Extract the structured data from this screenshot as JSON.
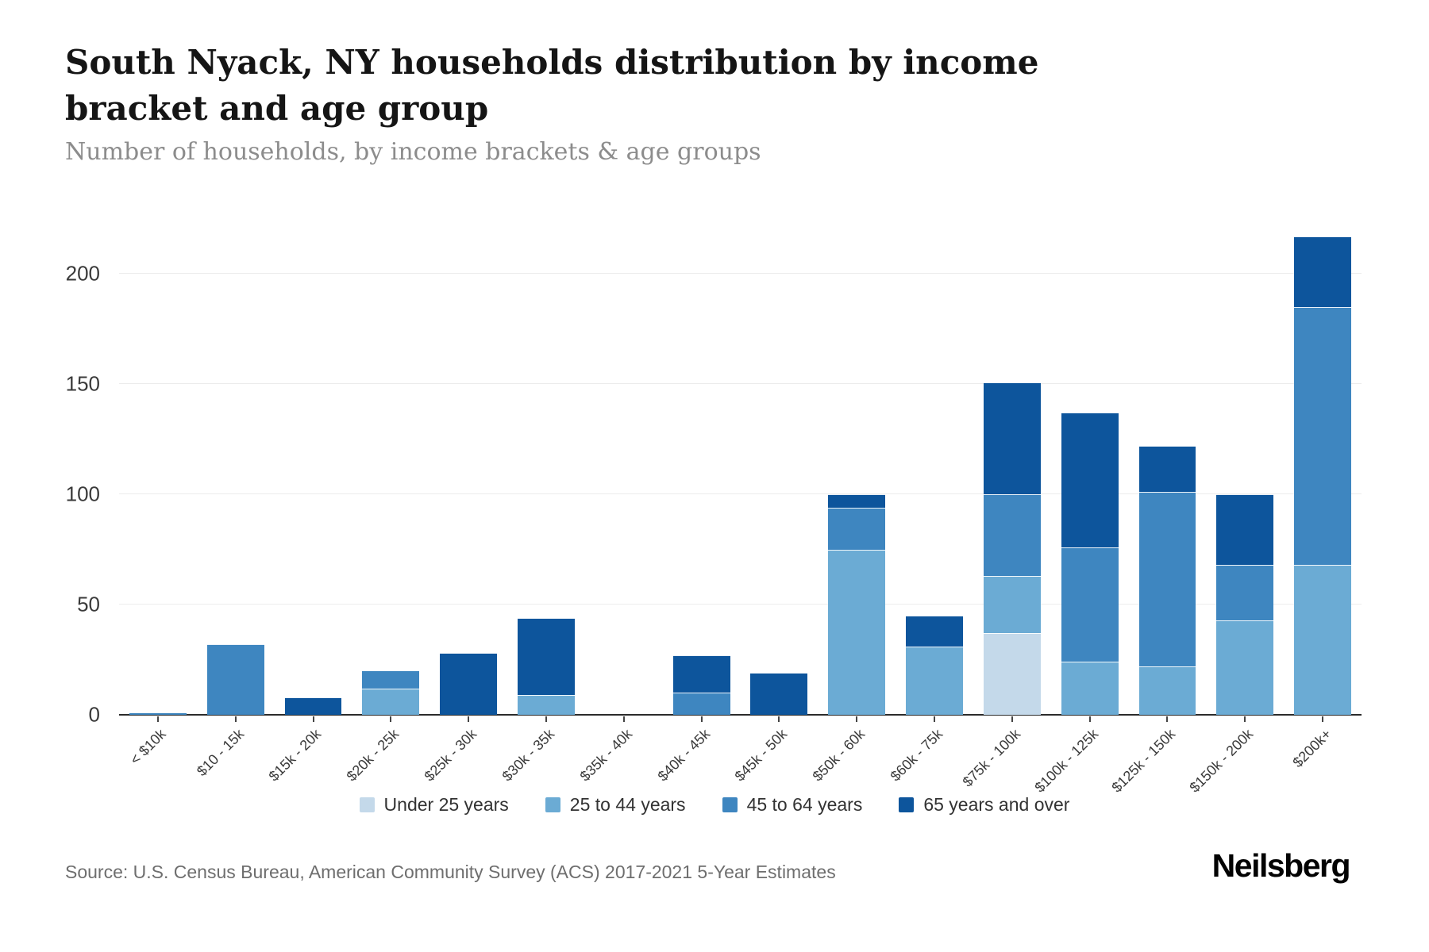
{
  "header": {
    "title": "South Nyack, NY households distribution by income bracket and age group",
    "subtitle": "Number of households, by income brackets & age groups"
  },
  "footer": {
    "source": "Source: U.S. Census Bureau, American Community Survey (ACS) 2017-2021 5-Year Estimates",
    "brand": "Neilsberg"
  },
  "colors": {
    "under_25": "#c4d9ea",
    "age_25_44": "#6babd4",
    "age_45_64": "#3e86c0",
    "age_65_over": "#0d559c",
    "gridline": "#ececec",
    "axis": "#2b2b2b"
  },
  "chart_data": {
    "type": "bar",
    "stacked": true,
    "grid": true,
    "legend_position": "bottom",
    "title": "South Nyack, NY households distribution by income bracket and age group",
    "xlabel": "",
    "ylabel": "Number of households",
    "ylim": [
      0,
      225
    ],
    "yticks": [
      0,
      50,
      100,
      150,
      200
    ],
    "categories": [
      "< $10k",
      "$10 - 15k",
      "$15k - 20k",
      "$20k - 25k",
      "$25k - 30k",
      "$30k - 35k",
      "$35k - 40k",
      "$40k - 45k",
      "$45k - 50k",
      "$50k - 60k",
      "$60k - 75k",
      "$75k - 100k",
      "$100k - 125k",
      "$125k - 150k",
      "$150k - 200k",
      "$200k+"
    ],
    "series": [
      {
        "name": "Under 25 years",
        "color": "#c4d9ea",
        "values": [
          0,
          0,
          0,
          0,
          0,
          0,
          0,
          0,
          0,
          0,
          0,
          37,
          0,
          0,
          0,
          0
        ]
      },
      {
        "name": "25 to 44 years",
        "color": "#6babd4",
        "values": [
          0,
          0,
          0,
          12,
          0,
          9,
          0,
          0,
          0,
          75,
          31,
          26,
          24,
          22,
          43,
          68
        ]
      },
      {
        "name": "45 to 64 years",
        "color": "#3e86c0",
        "values": [
          1,
          32,
          0,
          8,
          0,
          0,
          0,
          10,
          0,
          19,
          0,
          37,
          52,
          79,
          25,
          117
        ]
      },
      {
        "name": "65 years and over",
        "color": "#0d559c",
        "values": [
          0,
          0,
          8,
          0,
          28,
          35,
          0,
          17,
          19,
          6,
          14,
          51,
          61,
          21,
          32,
          32
        ]
      }
    ],
    "totals": [
      1,
      32,
      8,
      20,
      28,
      44,
      0,
      27,
      19,
      100,
      45,
      151,
      137,
      122,
      100,
      217
    ]
  }
}
